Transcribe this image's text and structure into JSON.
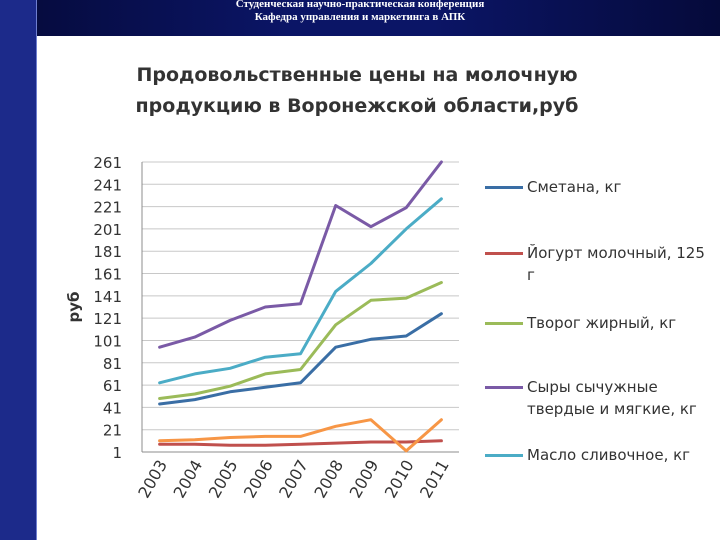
{
  "header": {
    "line1": "Студенческая научно-практическая конференция",
    "line2": "Кафедра управления и маркетинга в АПК"
  },
  "chart_data": {
    "type": "line",
    "title": "Продовольственные цены на молочную продукцию в Воронежской области,руб",
    "title_lines": [
      "Продовольственные цены на молочную",
      "продукцию в Воронежской области,руб"
    ],
    "ylabel": "руб",
    "xlabel": "",
    "categories": [
      "2003",
      "2004",
      "2005",
      "2006",
      "2007",
      "2008",
      "2009",
      "2010",
      "2011"
    ],
    "y_ticks": [
      1,
      21,
      41,
      61,
      81,
      101,
      121,
      141,
      161,
      181,
      201,
      221,
      241,
      261
    ],
    "ylim": [
      1,
      261
    ],
    "grid": "horizontal",
    "legend_position": "right",
    "series": [
      {
        "name": "Сметана, кг",
        "color": "#3a6ea5",
        "values": [
          44,
          48,
          55,
          59,
          63,
          95,
          102,
          105,
          125
        ]
      },
      {
        "name": "Йогурт молочный, 125 г",
        "color": "#c0504d",
        "values": [
          8,
          8,
          7,
          7,
          8,
          9,
          10,
          10,
          11
        ]
      },
      {
        "name": "Творог жирный, кг",
        "color": "#9bbb59",
        "values": [
          49,
          53,
          60,
          71,
          75,
          115,
          137,
          139,
          153
        ]
      },
      {
        "name": "Сыры сычужные твердые и мягкие, кг",
        "color": "#7a5aa6",
        "values": [
          95,
          104,
          119,
          131,
          134,
          222,
          203,
          220,
          261
        ]
      },
      {
        "name": "Масло сливочное, кг",
        "color": "#4bacc6",
        "values": [
          63,
          71,
          76,
          86,
          89,
          145,
          170,
          201,
          228
        ]
      },
      {
        "name": "",
        "color": "#f79646",
        "values": [
          11,
          12,
          14,
          15,
          15,
          24,
          30,
          2,
          30
        ]
      }
    ]
  }
}
